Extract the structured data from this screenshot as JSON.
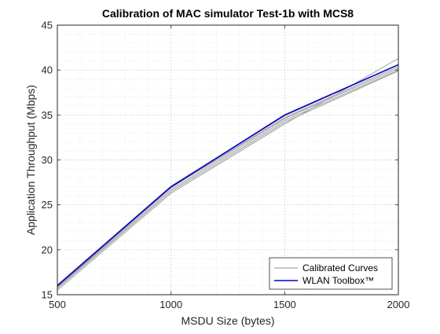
{
  "chart_data": {
    "type": "line",
    "title": "Calibration of MAC simulator Test-1b with MCS8",
    "xlabel": "MSDU Size (bytes)",
    "ylabel": "Application Throughput (Mbps)",
    "xlim": [
      500,
      2000
    ],
    "ylim": [
      15,
      45
    ],
    "xticks": [
      500,
      1000,
      1500,
      2000
    ],
    "yticks": [
      15,
      20,
      25,
      30,
      35,
      40,
      45
    ],
    "grid": "major-and-minor",
    "legend_position": "bottom-right",
    "x": [
      500,
      1000,
      1500,
      2000
    ],
    "series": [
      {
        "name": "Calibrated Curves",
        "color": "#a6a6a6",
        "values": [
          15.5,
          26.3,
          34.0,
          41.3
        ]
      },
      {
        "name": "",
        "color": "#a6a6a6",
        "values": [
          15.7,
          26.5,
          34.2,
          39.9
        ]
      },
      {
        "name": "",
        "color": "#a6a6a6",
        "values": [
          15.8,
          26.7,
          34.4,
          40.0
        ]
      },
      {
        "name": "",
        "color": "#a6a6a6",
        "values": [
          15.9,
          26.9,
          34.6,
          40.2
        ]
      },
      {
        "name": "",
        "color": "#a6a6a6",
        "values": [
          16.0,
          27.0,
          34.7,
          40.4
        ]
      },
      {
        "name": "",
        "color": "#a6a6a6",
        "values": [
          16.1,
          27.1,
          34.9,
          40.6
        ]
      },
      {
        "name": "WLAN Toolbox™",
        "color": "#0000cc",
        "values": [
          16.0,
          27.0,
          35.0,
          40.6
        ]
      }
    ],
    "legend": [
      {
        "label": "Calibrated Curves",
        "color": "#a6a6a6"
      },
      {
        "label": "WLAN Toolbox™",
        "color": "#0000cc"
      }
    ]
  }
}
